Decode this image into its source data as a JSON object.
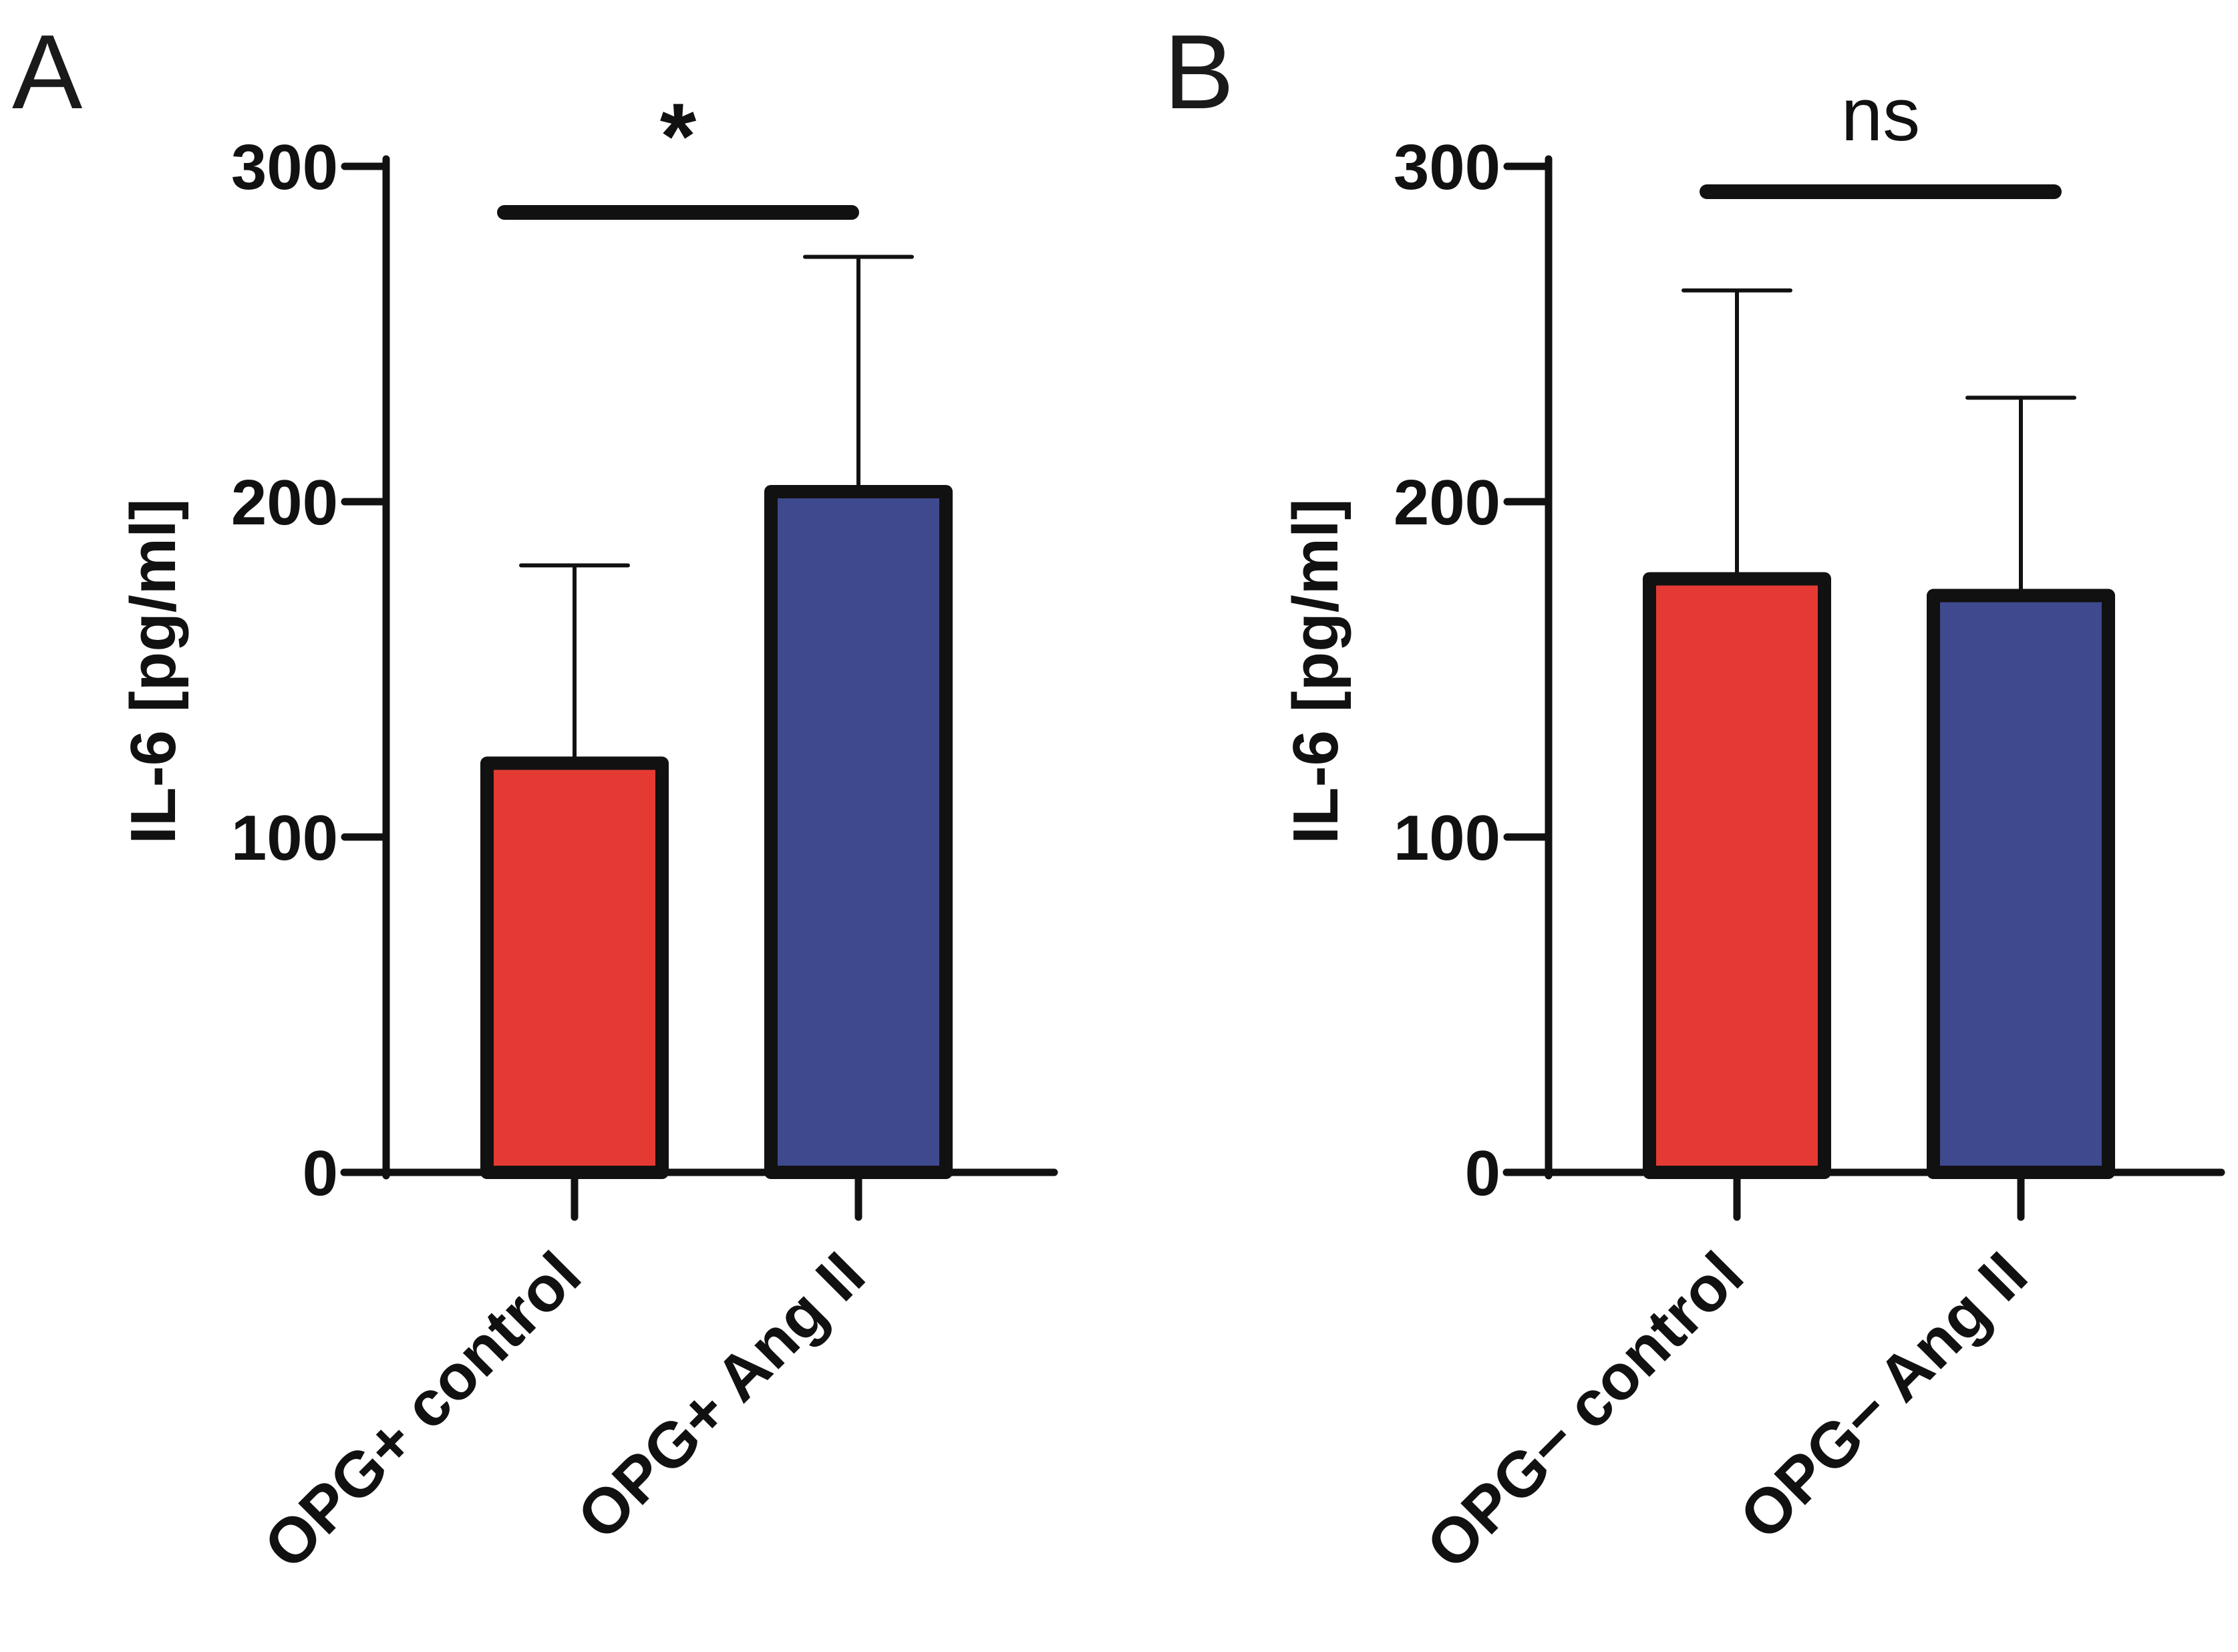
{
  "chart_data": [
    {
      "panel": "A",
      "type": "bar",
      "categories": [
        "OPG+ control",
        "OPG+ Ang II"
      ],
      "values": [
        122,
        203
      ],
      "error_upper": [
        181,
        273
      ],
      "colors": [
        "#e53a33",
        "#3e4a8d"
      ],
      "ylabel": "IL-6 [pg/ml]",
      "ylim": [
        0,
        300
      ],
      "yticks": [
        0,
        100,
        200,
        300
      ],
      "significance": "*",
      "grid": false
    },
    {
      "panel": "B",
      "type": "bar",
      "categories": [
        "OPG− control",
        "OPG− Ang II"
      ],
      "values": [
        177,
        172
      ],
      "error_upper": [
        263,
        231
      ],
      "colors": [
        "#e53a33",
        "#3e4a8d"
      ],
      "ylabel": "IL-6 [pg/ml]",
      "ylim": [
        0,
        300
      ],
      "yticks": [
        0,
        100,
        200,
        300
      ],
      "significance": "ns",
      "grid": false
    }
  ]
}
